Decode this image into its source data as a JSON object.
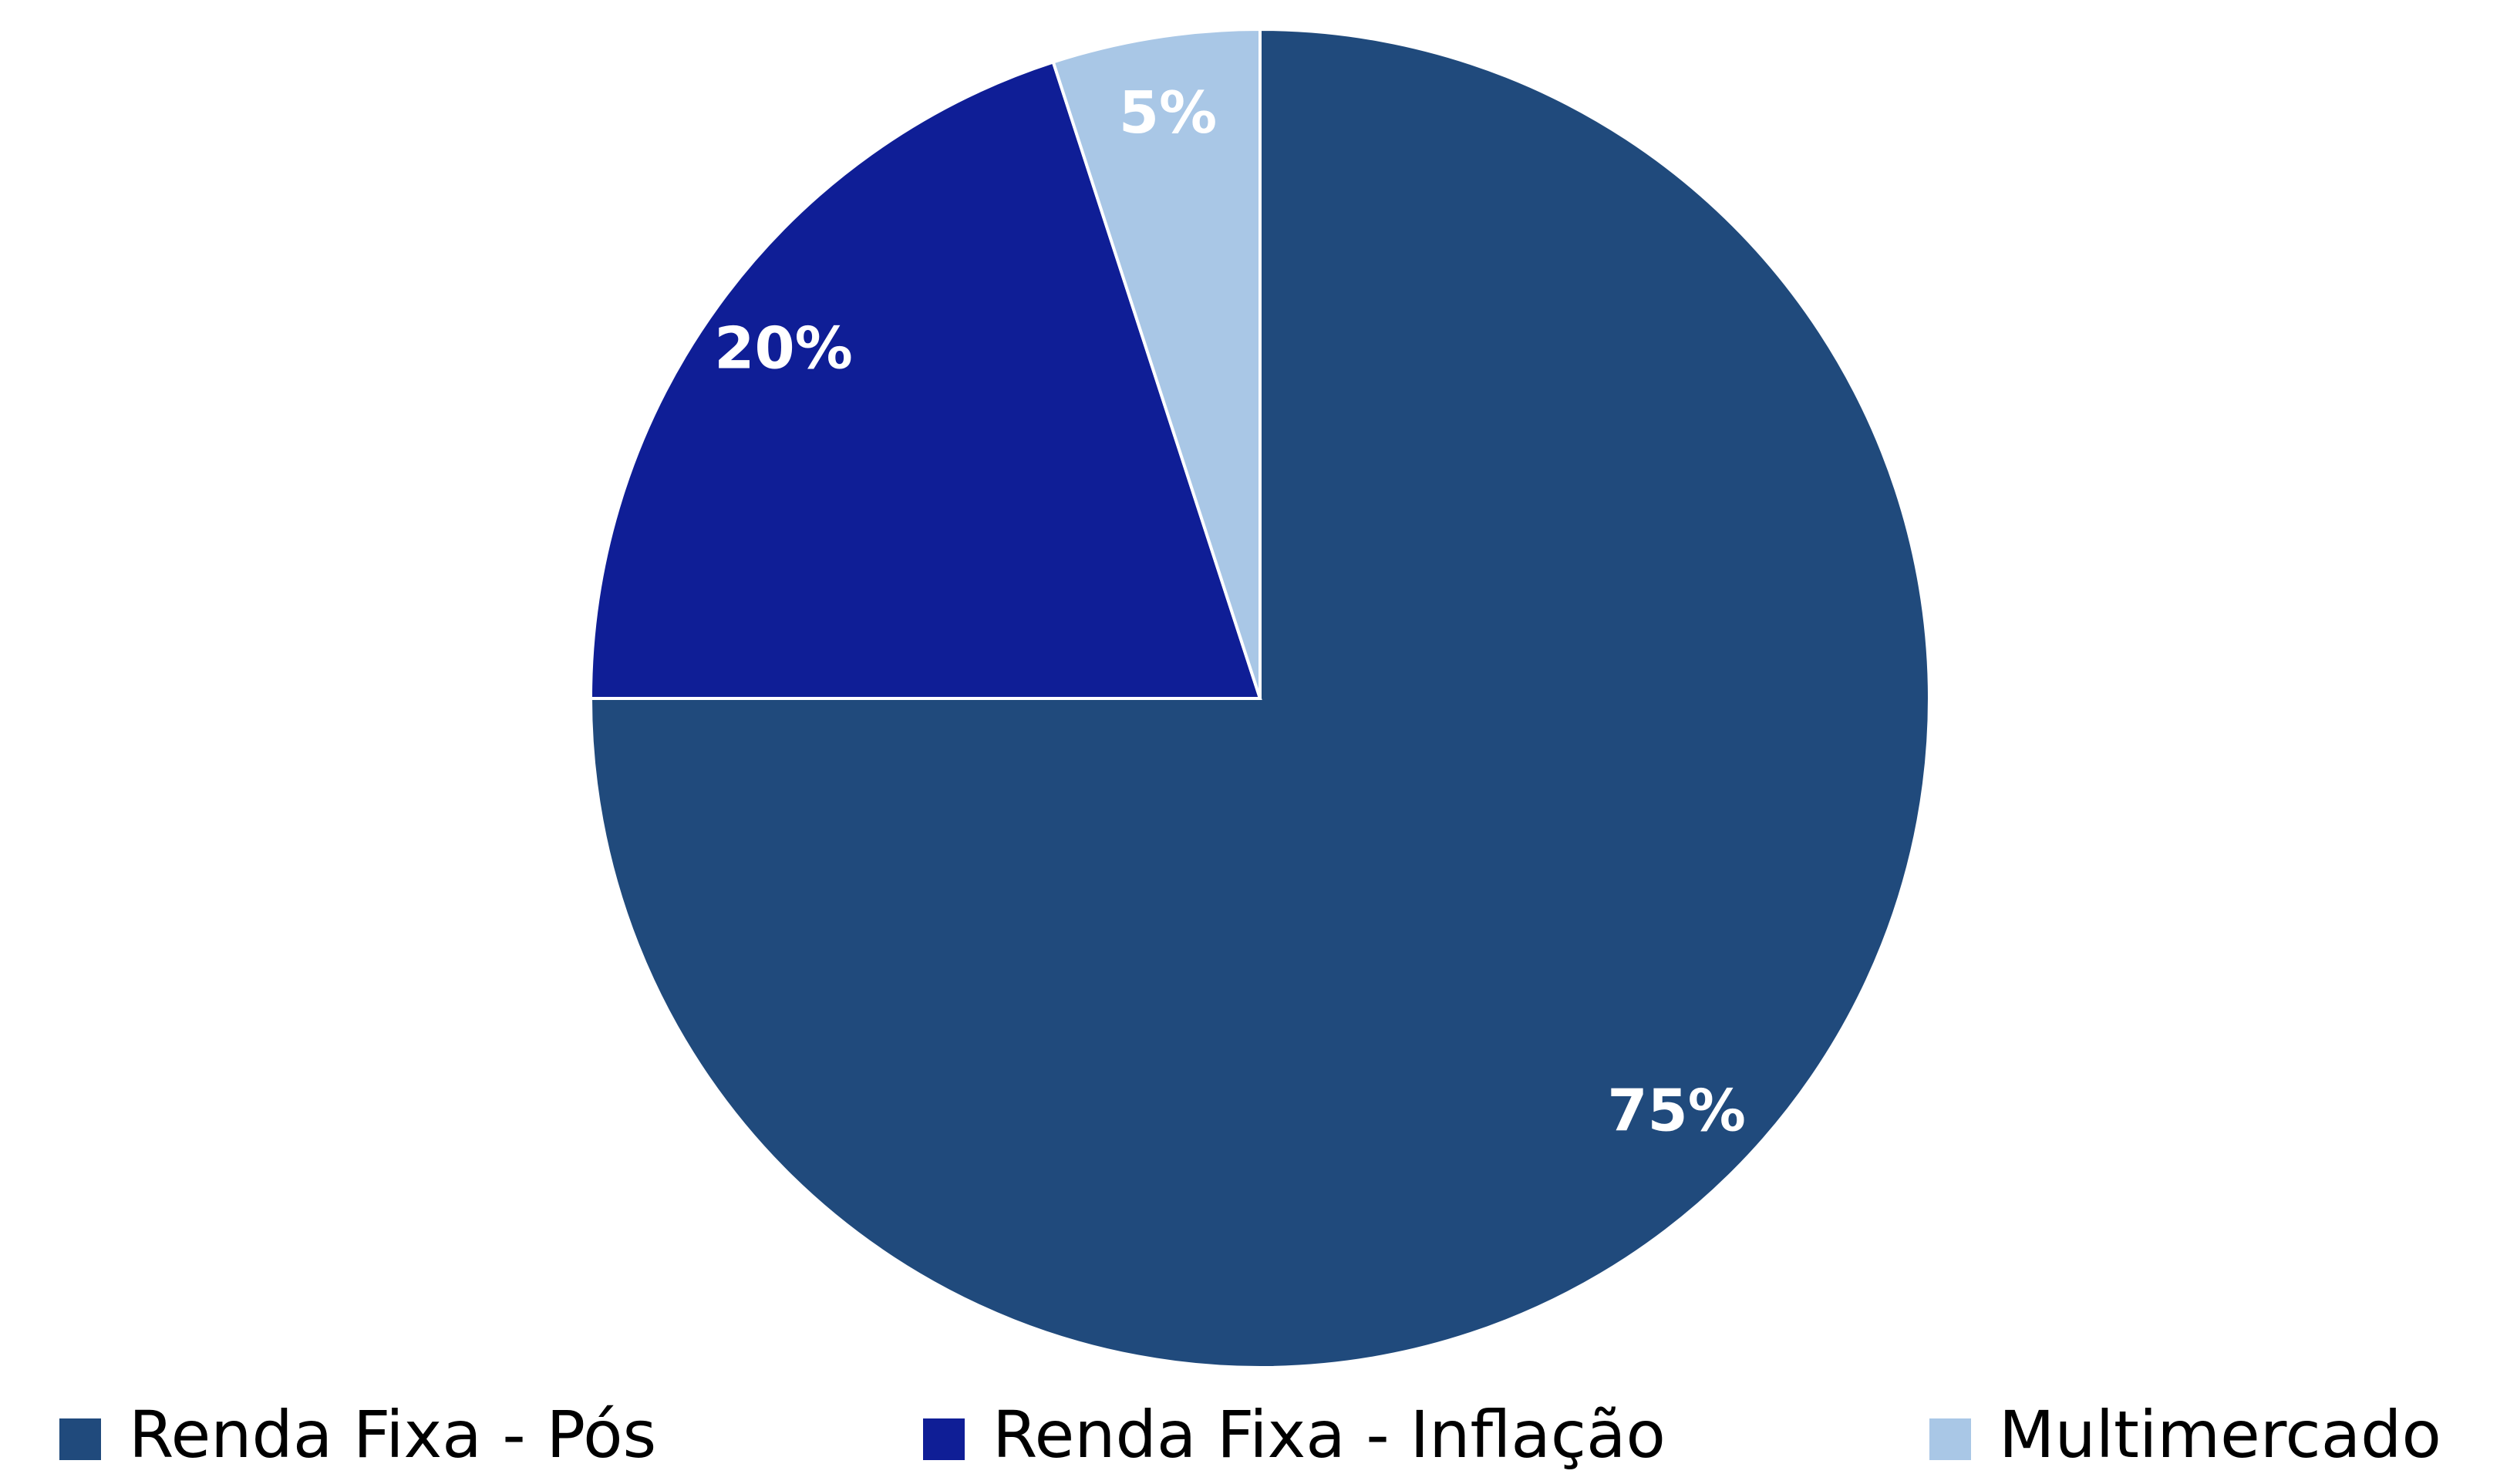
{
  "chart_data": {
    "type": "pie",
    "categories": [
      "Renda Fixa - Pós",
      "Renda Fixa - Inflação",
      "Multimercado"
    ],
    "values": [
      75,
      20,
      5
    ],
    "value_labels": [
      "75%",
      "20%",
      "5%"
    ],
    "colors": [
      "#204a7c",
      "#0f1e96",
      "#a9c7e6"
    ],
    "legend": "bottom"
  }
}
